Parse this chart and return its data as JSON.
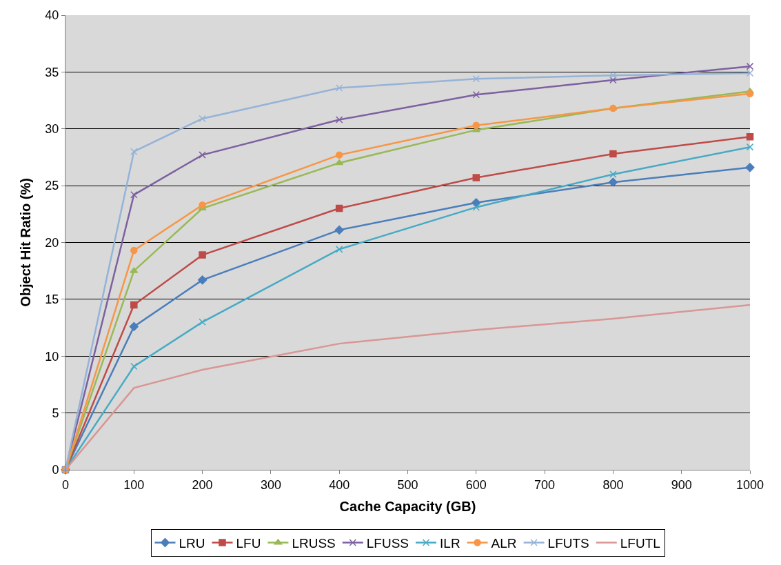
{
  "chart_data": {
    "type": "line",
    "xlabel": "Cache Capacity (GB)",
    "ylabel": "Object Hit Ratio (%)",
    "x": [
      0,
      100,
      200,
      400,
      600,
      800,
      1000
    ],
    "xlim": [
      0,
      1000
    ],
    "xticks": [
      0,
      100,
      200,
      300,
      400,
      500,
      600,
      700,
      800,
      900,
      1000
    ],
    "ylim": [
      0,
      40
    ],
    "yticks": [
      0,
      5,
      10,
      15,
      20,
      25,
      30,
      35,
      40
    ],
    "grid": "y",
    "legend": "bottom",
    "series": [
      {
        "name": "LRU",
        "color": "#4a7ebb",
        "marker": "diamond",
        "values": [
          0,
          12.6,
          16.7,
          21.1,
          23.5,
          25.3,
          26.6
        ]
      },
      {
        "name": "LFU",
        "color": "#be4b48",
        "marker": "square",
        "values": [
          0,
          14.5,
          18.9,
          23.0,
          25.7,
          27.8,
          29.3
        ]
      },
      {
        "name": "LRUSS",
        "color": "#98b954",
        "marker": "triangle",
        "values": [
          0,
          17.5,
          23.0,
          27.0,
          29.9,
          31.8,
          33.3
        ]
      },
      {
        "name": "LFUSS",
        "color": "#7d60a0",
        "marker": "cross",
        "values": [
          0,
          24.2,
          27.7,
          30.8,
          33.0,
          34.3,
          35.5
        ]
      },
      {
        "name": "ILR",
        "color": "#46aac5",
        "marker": "cross",
        "values": [
          0,
          9.1,
          13.0,
          19.4,
          23.1,
          26.0,
          28.4
        ]
      },
      {
        "name": "ALR",
        "color": "#f79646",
        "marker": "circle",
        "values": [
          0,
          19.3,
          23.3,
          27.7,
          30.3,
          31.8,
          33.1
        ]
      },
      {
        "name": "LFUTS",
        "color": "#95b3d7",
        "marker": "cross",
        "values": [
          0,
          28.0,
          30.9,
          33.6,
          34.4,
          34.7,
          34.9
        ]
      },
      {
        "name": "LFUTL",
        "color": "#d99694",
        "marker": "none",
        "values": [
          0,
          7.2,
          8.8,
          11.1,
          12.3,
          13.3,
          14.5
        ]
      }
    ]
  }
}
